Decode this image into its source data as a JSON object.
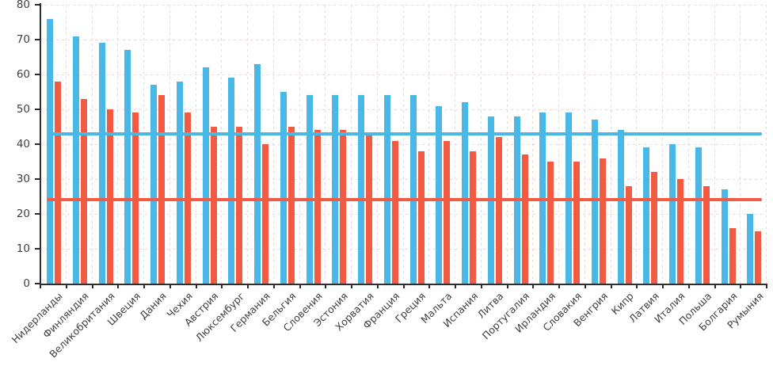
{
  "chart_data": {
    "type": "bar",
    "title": "",
    "xlabel": "",
    "ylabel": "",
    "ylim": [
      0,
      80
    ],
    "y_ticks": [
      0,
      10,
      20,
      30,
      40,
      50,
      60,
      70,
      80
    ],
    "grid": true,
    "legend_position": "none",
    "categories": [
      "Нидерланды",
      "Финляндия",
      "Великобритания",
      "Швеция",
      "Дания",
      "Чехия",
      "Австрия",
      "Люксембург",
      "Германия",
      "Бельгия",
      "Словения",
      "Эстония",
      "Хорватия",
      "Франция",
      "Греция",
      "Мальта",
      "Испания",
      "Литва",
      "Португалия",
      "Ирландия",
      "Словакия",
      "Венгрия",
      "Кипр",
      "Латвия",
      "Италия",
      "Польша",
      "Болгария",
      "Румыния"
    ],
    "series": [
      {
        "name": "blue-series",
        "color": "#4ab8e6",
        "values": [
          76,
          71,
          69,
          67,
          57,
          58,
          62,
          59,
          63,
          55,
          54,
          54,
          54,
          54,
          54,
          51,
          52,
          48,
          48,
          49,
          49,
          47,
          44,
          39,
          40,
          39,
          27,
          20
        ]
      },
      {
        "name": "red-series",
        "color": "#f15b43",
        "values": [
          58,
          53,
          50,
          49,
          54,
          49,
          45,
          45,
          40,
          45,
          44,
          44,
          43,
          41,
          38,
          41,
          38,
          42,
          37,
          35,
          35,
          36,
          28,
          32,
          30,
          28,
          16,
          15
        ]
      }
    ],
    "reference_lines": [
      {
        "name": "blue-average-line",
        "value": 43,
        "color": "#4ab8e6"
      },
      {
        "name": "red-average-line",
        "value": 24,
        "color": "#f15b43"
      }
    ]
  },
  "colors": {
    "background": "#ffffff",
    "grid": "#e7d9d9",
    "axis": "#2e2e2e",
    "tick_text": "#3f3f3f"
  }
}
